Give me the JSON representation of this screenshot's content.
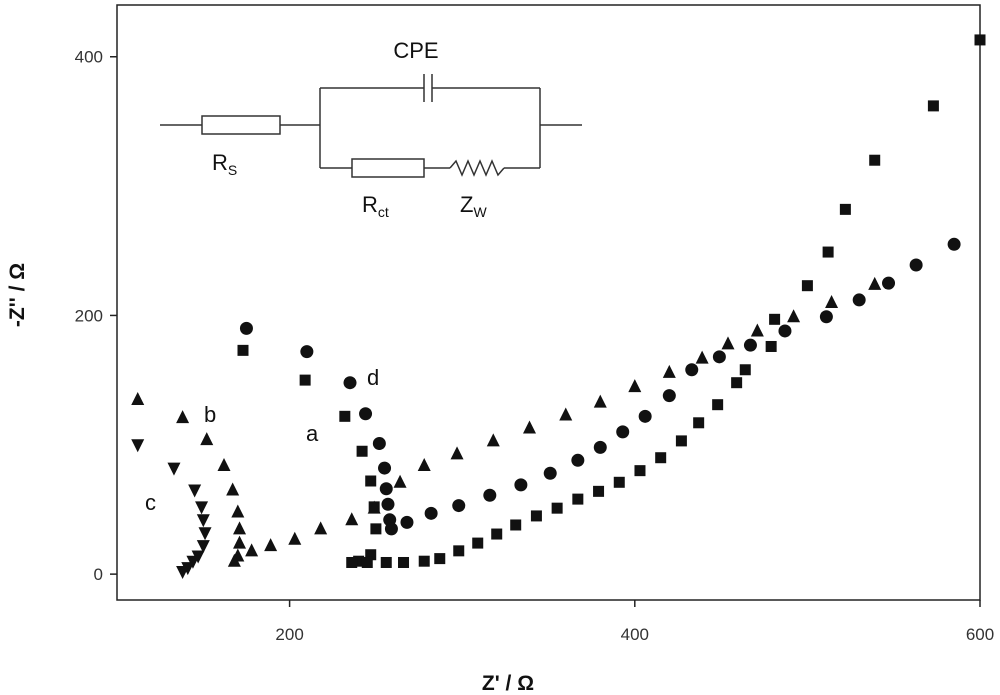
{
  "chart_data": {
    "type": "scatter",
    "xlabel": "Z' / Ω",
    "ylabel": "-Z'' / Ω",
    "xlim": [
      100,
      600
    ],
    "ylim": [
      -20,
      440
    ],
    "x_ticks": [
      200,
      400,
      600
    ],
    "y_ticks": [
      0,
      200,
      400
    ],
    "x_tick_labels": [
      "200",
      "400",
      "600"
    ],
    "y_tick_labels": [
      "0",
      "200",
      "400"
    ],
    "grid": false,
    "series": [
      {
        "name": "a",
        "marker": "square",
        "points": [
          [
            173,
            173
          ],
          [
            209,
            150
          ],
          [
            232,
            122
          ],
          [
            242,
            95
          ],
          [
            247,
            72
          ],
          [
            249,
            52
          ],
          [
            250,
            35
          ],
          [
            247,
            15
          ],
          [
            240,
            10
          ],
          [
            236,
            9
          ],
          [
            245,
            9
          ],
          [
            256,
            9
          ],
          [
            266,
            9
          ],
          [
            278,
            10
          ],
          [
            287,
            12
          ],
          [
            298,
            18
          ],
          [
            309,
            24
          ],
          [
            320,
            31
          ],
          [
            331,
            38
          ],
          [
            343,
            45
          ],
          [
            355,
            51
          ],
          [
            367,
            58
          ],
          [
            379,
            64
          ],
          [
            391,
            71
          ],
          [
            403,
            80
          ],
          [
            415,
            90
          ],
          [
            427,
            103
          ],
          [
            437,
            117
          ],
          [
            448,
            131
          ],
          [
            459,
            148
          ],
          [
            464,
            158
          ],
          [
            479,
            176
          ],
          [
            481,
            197
          ],
          [
            500,
            223
          ],
          [
            512,
            249
          ],
          [
            522,
            282
          ],
          [
            539,
            320
          ],
          [
            573,
            362
          ],
          [
            600,
            413
          ]
        ]
      },
      {
        "name": "b",
        "marker": "triangle-up",
        "points": [
          [
            112,
            135
          ],
          [
            138,
            121
          ],
          [
            152,
            104
          ],
          [
            162,
            84
          ],
          [
            167,
            65
          ],
          [
            170,
            48
          ],
          [
            171,
            35
          ],
          [
            171,
            24
          ],
          [
            170,
            14
          ],
          [
            168,
            10
          ],
          [
            178,
            18
          ],
          [
            189,
            22
          ],
          [
            203,
            27
          ],
          [
            218,
            35
          ],
          [
            236,
            42
          ],
          [
            249,
            51
          ],
          [
            264,
            71
          ],
          [
            278,
            84
          ],
          [
            297,
            93
          ],
          [
            318,
            103
          ],
          [
            339,
            113
          ],
          [
            360,
            123
          ],
          [
            380,
            133
          ],
          [
            400,
            145
          ],
          [
            420,
            156
          ],
          [
            439,
            167
          ],
          [
            454,
            178
          ],
          [
            471,
            188
          ],
          [
            492,
            199
          ],
          [
            514,
            210
          ],
          [
            539,
            224
          ]
        ]
      },
      {
        "name": "c",
        "marker": "triangle-down",
        "points": [
          [
            112,
            100
          ],
          [
            133,
            82
          ],
          [
            145,
            65
          ],
          [
            149,
            52
          ],
          [
            150,
            42
          ],
          [
            151,
            32
          ],
          [
            150,
            22
          ],
          [
            147,
            14
          ],
          [
            144,
            10
          ],
          [
            141,
            5
          ],
          [
            138,
            2
          ]
        ]
      },
      {
        "name": "d",
        "marker": "circle",
        "points": [
          [
            175,
            190
          ],
          [
            210,
            172
          ],
          [
            235,
            148
          ],
          [
            244,
            124
          ],
          [
            252,
            101
          ],
          [
            255,
            82
          ],
          [
            256,
            66
          ],
          [
            257,
            54
          ],
          [
            258,
            42
          ],
          [
            259,
            35
          ],
          [
            268,
            40
          ],
          [
            282,
            47
          ],
          [
            298,
            53
          ],
          [
            316,
            61
          ],
          [
            334,
            69
          ],
          [
            351,
            78
          ],
          [
            367,
            88
          ],
          [
            380,
            98
          ],
          [
            393,
            110
          ],
          [
            406,
            122
          ],
          [
            420,
            138
          ],
          [
            433,
            158
          ],
          [
            449,
            168
          ],
          [
            467,
            177
          ],
          [
            487,
            188
          ],
          [
            511,
            199
          ],
          [
            530,
            212
          ],
          [
            547,
            225
          ],
          [
            563,
            239
          ],
          [
            585,
            255
          ]
        ]
      }
    ],
    "annotations": [
      "a",
      "b",
      "c",
      "d"
    ]
  },
  "inset_circuit": {
    "cpe_label": "CPE",
    "rs_label_main": "R",
    "rs_label_sub": "S",
    "rct_label_main": "R",
    "rct_label_sub": "ct",
    "zw_label_main": "Z",
    "zw_label_sub": "W"
  }
}
